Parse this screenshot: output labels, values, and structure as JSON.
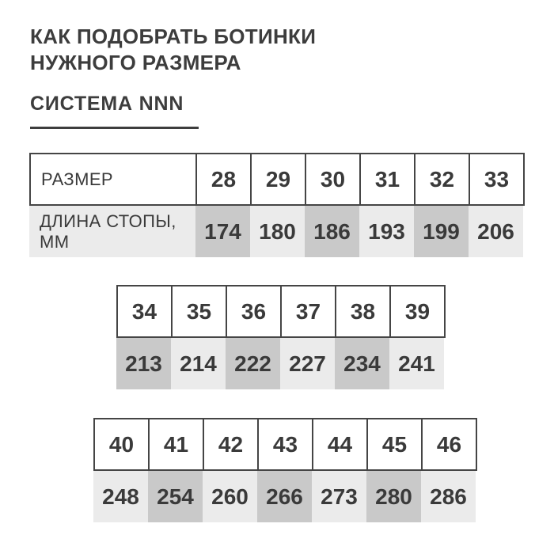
{
  "page": {
    "title_line1": "КАК ПОДОБРАТЬ БОТИНКИ",
    "title_line2": "НУЖНОГО РАЗМЕРА",
    "subtitle": "СИСТЕМА NNN"
  },
  "labels": {
    "size": "РАЗМЕР",
    "foot_length_line1": "ДЛИНА СТОПЫ,",
    "foot_length_line2": "ММ"
  },
  "colors": {
    "text": "#3a3a3a",
    "title": "#3d3d3d",
    "table_border": "#454545",
    "cell_dark": "#c9c9c9",
    "cell_light": "#ebebeb",
    "background": "#ffffff"
  },
  "chart_data": {
    "type": "table",
    "title": "КАК ПОДОБРАТЬ БОТИНКИ НУЖНОГО РАЗМЕРА",
    "subtitle": "СИСТЕМА NNN",
    "row_headers": [
      "РАЗМЕР",
      "ДЛИНА СТОПЫ, ММ"
    ],
    "tables": [
      {
        "has_row_labels": true,
        "sizes": [
          28,
          29,
          30,
          31,
          32,
          33
        ],
        "lengths_mm": [
          174,
          180,
          186,
          193,
          199,
          206
        ],
        "shaded_length_cells": [
          0,
          2,
          4
        ]
      },
      {
        "has_row_labels": false,
        "sizes": [
          34,
          35,
          36,
          37,
          38,
          39
        ],
        "lengths_mm": [
          213,
          214,
          222,
          227,
          234,
          241
        ],
        "shaded_length_cells": [
          0,
          2,
          4
        ]
      },
      {
        "has_row_labels": false,
        "sizes": [
          40,
          41,
          42,
          43,
          44,
          45,
          46
        ],
        "lengths_mm": [
          248,
          254,
          260,
          266,
          273,
          280,
          286
        ],
        "shaded_length_cells": [
          1,
          3,
          5
        ]
      }
    ]
  }
}
